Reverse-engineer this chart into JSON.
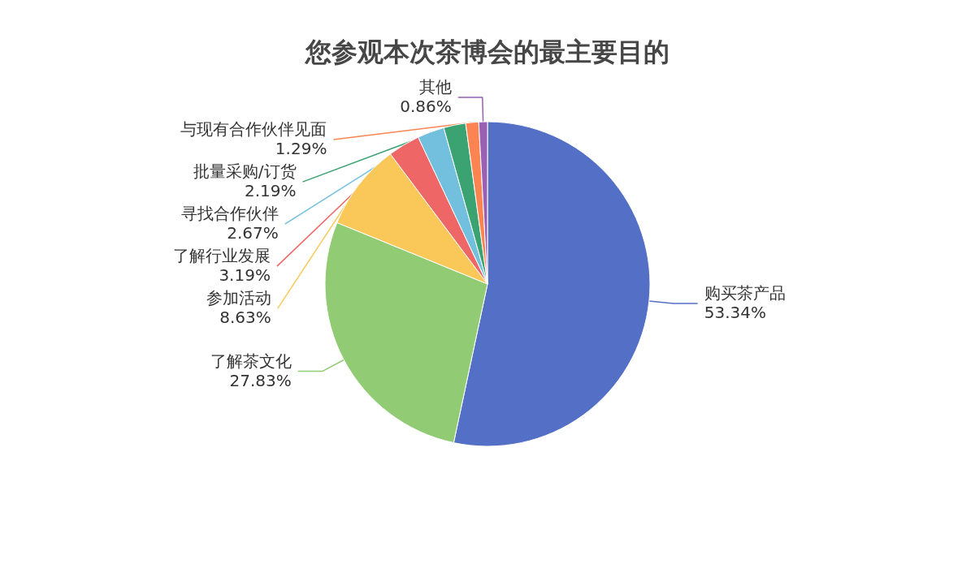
{
  "chart_data": {
    "type": "pie",
    "title": "您参观本次茶博会的最主要目的",
    "categories": [
      "购买茶产品",
      "了解茶文化",
      "参加活动",
      "了解行业发展",
      "寻找合作伙伴",
      "批量采购/订货",
      "与现有合作伙伴见面",
      "其他"
    ],
    "values": [
      53.34,
      27.83,
      8.63,
      3.19,
      2.67,
      2.19,
      1.29,
      0.86
    ],
    "value_labels": [
      "53.34%",
      "27.83%",
      "8.63%",
      "3.19%",
      "2.67%",
      "2.19%",
      "1.29%",
      "0.86%"
    ],
    "colors": [
      "#5470c6",
      "#91cc75",
      "#fac858",
      "#ee6666",
      "#73c0de",
      "#3ba272",
      "#fc8452",
      "#9a60b4"
    ]
  }
}
